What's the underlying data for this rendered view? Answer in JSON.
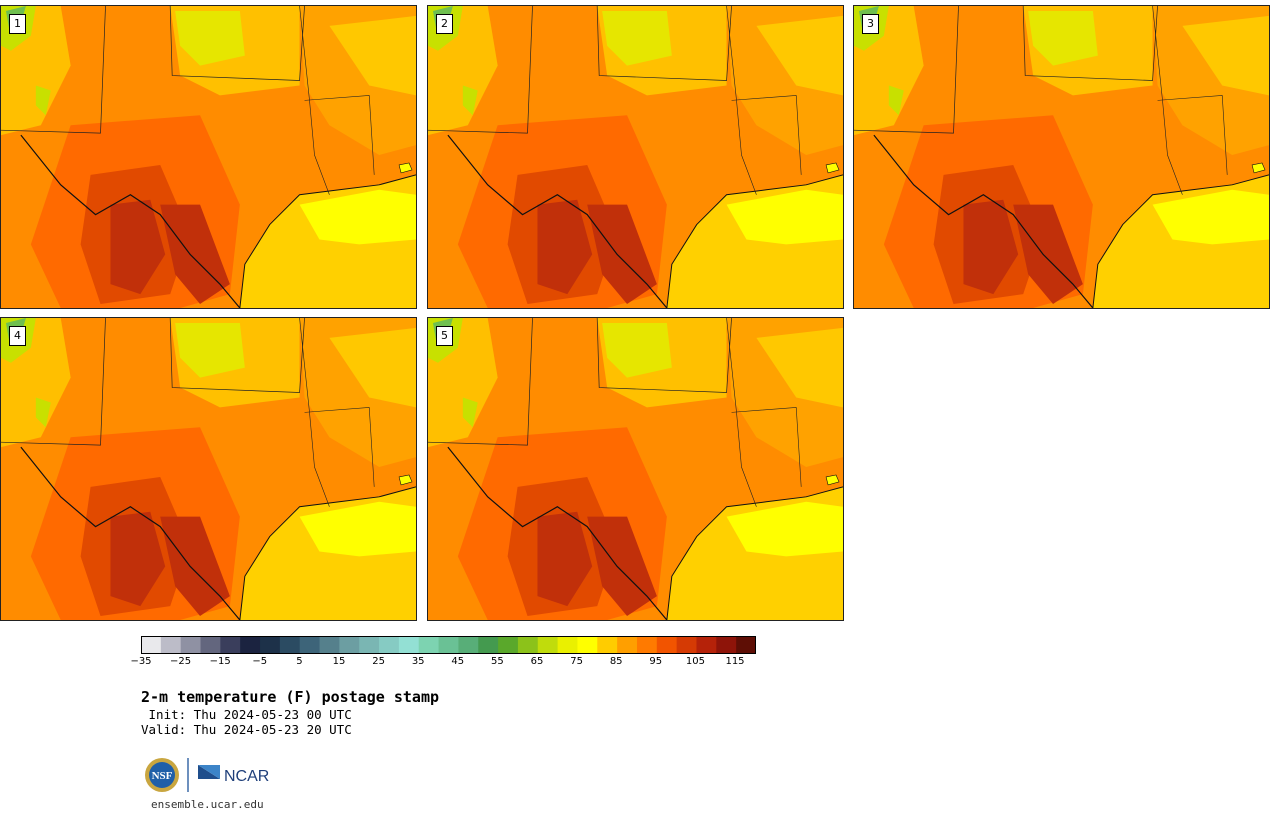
{
  "panels": [
    {
      "label": "1"
    },
    {
      "label": "2"
    },
    {
      "label": "3"
    },
    {
      "label": "4"
    },
    {
      "label": "5"
    }
  ],
  "colorbar": {
    "tick_labels": [
      "−35",
      "−25",
      "−15",
      "−5",
      "5",
      "15",
      "25",
      "35",
      "45",
      "55",
      "65",
      "75",
      "85",
      "95",
      "105",
      "115"
    ],
    "colors": [
      "#e9e9ec",
      "#bcbcc8",
      "#8f91a3",
      "#63667e",
      "#3a3e5c",
      "#1b2340",
      "#1d3149",
      "#2b4b62",
      "#3d6479",
      "#55808c",
      "#6c9ea2",
      "#7ab6b3",
      "#86cbc3",
      "#93e0d4",
      "#7dd3b1",
      "#6ac195",
      "#58ae78",
      "#449a4f",
      "#5aa82b",
      "#8cc21a",
      "#c0dc0c",
      "#eaf000",
      "#ffff00",
      "#ffcc00",
      "#ff9f00",
      "#ff7a00",
      "#f25400",
      "#d53a04",
      "#b52209",
      "#8e1409",
      "#5e0e05"
    ]
  },
  "title": "2-m temperature (F) postage stamp",
  "init": " Init: Thu 2024-05-23 00 UTC",
  "valid": "Valid: Thu 2024-05-23 20 UTC",
  "logos": {
    "nsf": "NSF",
    "ncar": "NCAR"
  },
  "url": "ensemble.ucar.edu"
}
